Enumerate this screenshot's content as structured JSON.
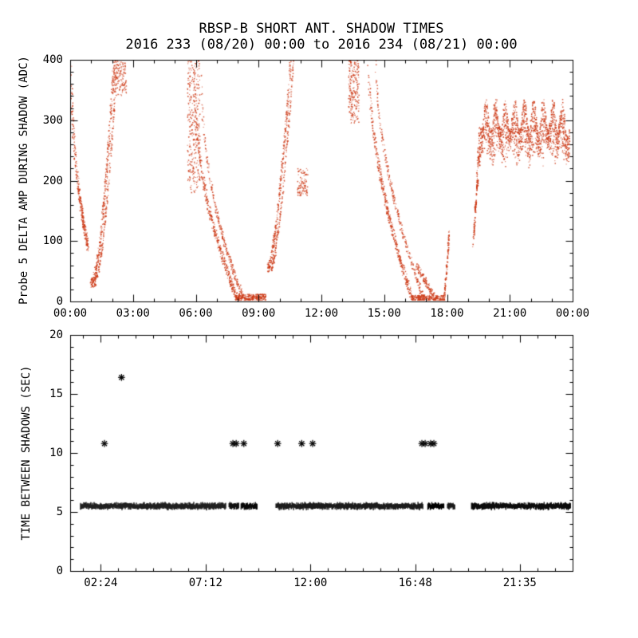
{
  "titles": {
    "line1": "RBSP-B SHORT ANT. SHADOW TIMES",
    "line2": "2016 233 (08/20) 00:00 to 2016 234 (08/21) 00:00"
  },
  "colors": {
    "top_points": "#cc3a16",
    "bottom_points": "#000000",
    "axis": "#000000",
    "background": "#ffffff"
  },
  "chart_data": [
    {
      "type": "scatter",
      "panel": "top",
      "ylabel": "Probe 5 DELTA AMP DURING SHADOW (ADC)",
      "xlabel": "",
      "x_range_hours": [
        0,
        24
      ],
      "ylim": [
        0,
        400
      ],
      "x_ticks": [
        {
          "hour": 0,
          "label": "00:00"
        },
        {
          "hour": 3,
          "label": "03:00"
        },
        {
          "hour": 6,
          "label": "06:00"
        },
        {
          "hour": 9,
          "label": "09:00"
        },
        {
          "hour": 12,
          "label": "12:00"
        },
        {
          "hour": 15,
          "label": "15:00"
        },
        {
          "hour": 18,
          "label": "18:00"
        },
        {
          "hour": 21,
          "label": "21:00"
        },
        {
          "hour": 24,
          "label": "00:00"
        }
      ],
      "y_ticks": [
        0,
        100,
        200,
        300,
        400
      ],
      "x_minor_per_major": 3,
      "y_minor_per_major": 5,
      "clusters": [
        {
          "kind": "fall",
          "t0": 0.05,
          "t1": 0.85,
          "ytop": 403,
          "ybot": 90,
          "p": 0.45,
          "tw": 0.1,
          "n": 300
        },
        {
          "kind": "rise",
          "t0": 1.0,
          "t1": 2.1,
          "ybot": 30,
          "ytop": 403,
          "p": 1.8,
          "tw": 0.1,
          "n": 330
        },
        {
          "kind": "rise",
          "t0": 1.12,
          "t1": 2.25,
          "ybot": 30,
          "ytop": 403,
          "p": 1.8,
          "tw": 0.06,
          "n": 200
        },
        {
          "kind": "blob",
          "t0": 2.05,
          "t1": 2.7,
          "ylo": 340,
          "yhi": 403,
          "n": 150
        },
        {
          "kind": "blob",
          "t0": 5.6,
          "t1": 6.2,
          "ylo": 180,
          "yhi": 403,
          "n": 300
        },
        {
          "kind": "fall",
          "t0": 5.9,
          "t1": 8.0,
          "ytop": 403,
          "ybot": 3,
          "p": 0.45,
          "tw": 0.12,
          "n": 400
        },
        {
          "kind": "fall",
          "t0": 6.25,
          "t1": 8.3,
          "ytop": 403,
          "ybot": 3,
          "p": 0.45,
          "tw": 0.07,
          "n": 250
        },
        {
          "kind": "blob",
          "t0": 7.9,
          "t1": 9.35,
          "ylo": 0,
          "yhi": 12,
          "n": 300
        },
        {
          "kind": "rise",
          "t0": 9.45,
          "t1": 10.55,
          "ybot": 55,
          "ytop": 403,
          "p": 1.5,
          "tw": 0.09,
          "n": 300
        },
        {
          "kind": "rise",
          "t0": 9.6,
          "t1": 10.68,
          "ybot": 55,
          "ytop": 403,
          "p": 1.5,
          "tw": 0.06,
          "n": 190
        },
        {
          "kind": "blob",
          "t0": 10.85,
          "t1": 11.35,
          "ylo": 175,
          "yhi": 220,
          "n": 100
        },
        {
          "kind": "blob",
          "t0": 13.3,
          "t1": 13.8,
          "ylo": 295,
          "yhi": 403,
          "n": 240
        },
        {
          "kind": "fall",
          "t0": 14.25,
          "t1": 16.35,
          "ytop": 403,
          "ybot": 4,
          "p": 0.55,
          "tw": 0.11,
          "n": 420
        },
        {
          "kind": "fall",
          "t0": 14.6,
          "t1": 16.9,
          "ytop": 403,
          "ybot": 4,
          "p": 0.55,
          "tw": 0.07,
          "n": 270
        },
        {
          "kind": "fall",
          "t0": 16.55,
          "t1": 17.45,
          "ytop": 60,
          "ybot": 2,
          "p": 1.0,
          "tw": 0.1,
          "n": 120
        },
        {
          "kind": "blob",
          "t0": 16.3,
          "t1": 17.85,
          "ylo": 0,
          "yhi": 10,
          "n": 260
        },
        {
          "kind": "rise",
          "t0": 17.85,
          "t1": 18.1,
          "ybot": 1,
          "ytop": 112,
          "p": 1.2,
          "tw": 0.05,
          "n": 120
        },
        {
          "kind": "rise",
          "t0": 19.25,
          "t1": 19.55,
          "ybot": 95,
          "ytop": 285,
          "p": 1.2,
          "tw": 0.05,
          "n": 90
        },
        {
          "kind": "comb",
          "t0": 19.3,
          "t1": 23.85,
          "dt": 0.045,
          "top_base": 310,
          "top_amp": 26,
          "bot_base": 236,
          "bot_amp": 14,
          "per_striation": 16
        }
      ]
    },
    {
      "type": "scatter",
      "panel": "bottom",
      "ylabel": "TIME BETWEEN SHADOWS (SEC)",
      "xlabel": "",
      "x_range_hours": [
        1,
        24
      ],
      "ylim": [
        0,
        20
      ],
      "x_ticks": [
        {
          "hour": 2.4,
          "label": "02:24"
        },
        {
          "hour": 7.2,
          "label": "07:12"
        },
        {
          "hour": 12.0,
          "label": "12:00"
        },
        {
          "hour": 16.8,
          "label": "16:48"
        },
        {
          "hour": 21.583,
          "label": "21:35"
        }
      ],
      "y_ticks": [
        0,
        5,
        10,
        15,
        20
      ],
      "x_minor_per_major": 6,
      "y_minor_per_major": 5,
      "baseline_sec": 5.5,
      "baseline_segments_hours": [
        [
          1.45,
          8.1
        ],
        [
          8.25,
          8.7
        ],
        [
          8.8,
          9.55
        ],
        [
          10.4,
          17.15
        ],
        [
          17.35,
          18.1
        ],
        [
          18.25,
          18.6
        ],
        [
          19.35,
          23.9
        ]
      ],
      "outliers": [
        {
          "hour": 2.57,
          "sec": 10.8
        },
        {
          "hour": 3.35,
          "sec": 16.4
        },
        {
          "hour": 8.45,
          "sec": 10.8
        },
        {
          "hour": 8.6,
          "sec": 10.8
        },
        {
          "hour": 8.95,
          "sec": 10.8
        },
        {
          "hour": 10.5,
          "sec": 10.8
        },
        {
          "hour": 11.6,
          "sec": 10.8
        },
        {
          "hour": 12.1,
          "sec": 10.8
        },
        {
          "hour": 17.1,
          "sec": 10.8
        },
        {
          "hour": 17.25,
          "sec": 10.8
        },
        {
          "hour": 17.5,
          "sec": 10.8
        },
        {
          "hour": 17.65,
          "sec": 10.8
        }
      ]
    }
  ]
}
